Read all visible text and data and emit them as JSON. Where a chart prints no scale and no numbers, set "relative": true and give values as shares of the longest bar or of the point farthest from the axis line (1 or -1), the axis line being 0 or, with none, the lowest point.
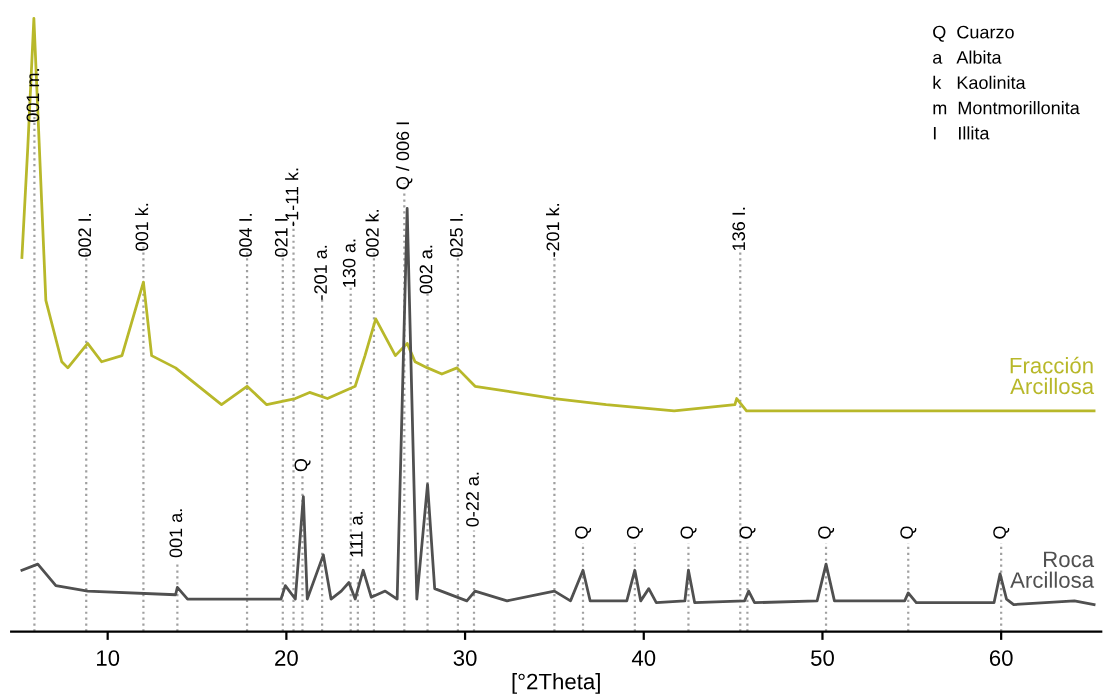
{
  "chart_data": {
    "type": "line",
    "relative": true,
    "xlabel": "[°2Theta]",
    "xlim": [
      4.6,
      65.6
    ],
    "xticks": [
      10,
      20,
      30,
      40,
      50,
      60
    ],
    "grid": false,
    "legend": false,
    "marker": "none",
    "line_style": "solid",
    "series": [
      {
        "name": "Fracción\nArcillosa",
        "color": "#b8b82a",
        "x": [
          5.2,
          5.53,
          5.87,
          6.54,
          7.43,
          7.77,
          8.88,
          9.66,
          10.8,
          12.0,
          12.46,
          13.8,
          16.37,
          17.8,
          18.9,
          20.5,
          21.3,
          22.3,
          23.85,
          24.4,
          25.0,
          26.1,
          26.76,
          27.2,
          27.9,
          28.7,
          29.55,
          30.56,
          35.0,
          37.9,
          41.7,
          45.1,
          45.2,
          45.75,
          52.9,
          65.2
        ],
        "values": [
          0.61,
          0.79,
          1.0,
          0.54,
          0.44,
          0.43,
          0.47,
          0.44,
          0.45,
          0.57,
          0.45,
          0.43,
          0.37,
          0.4,
          0.37,
          0.38,
          0.39,
          0.38,
          0.4,
          0.45,
          0.51,
          0.45,
          0.47,
          0.44,
          0.43,
          0.42,
          0.43,
          0.4,
          0.38,
          0.37,
          0.36,
          0.37,
          0.38,
          0.36,
          0.36,
          0.36
        ]
      },
      {
        "name": "Roca\nArcillosa",
        "color": "#505050",
        "x": [
          5.2,
          6.09,
          7.1,
          8.88,
          13.8,
          13.9,
          14.47,
          19.7,
          19.94,
          20.5,
          20.95,
          21.17,
          22.07,
          22.5,
          23.07,
          23.5,
          23.85,
          24.3,
          24.75,
          25.53,
          26.2,
          26.76,
          27.3,
          27.9,
          28.3,
          30.1,
          30.56,
          32.35,
          35.0,
          35.9,
          36.6,
          37.0,
          39.05,
          39.5,
          39.83,
          40.28,
          40.7,
          42.3,
          42.5,
          42.85,
          45.64,
          45.87,
          46.2,
          49.7,
          50.2,
          50.67,
          54.6,
          54.8,
          55.25,
          59.6,
          59.94,
          60.3,
          60.7,
          64.1,
          65.2
        ],
        "values": [
          0.1,
          0.11,
          0.075,
          0.066,
          0.06,
          0.072,
          0.053,
          0.053,
          0.075,
          0.053,
          0.22,
          0.053,
          0.125,
          0.053,
          0.066,
          0.08,
          0.053,
          0.1,
          0.056,
          0.066,
          0.053,
          0.69,
          0.053,
          0.24,
          0.07,
          0.05,
          0.066,
          0.05,
          0.066,
          0.05,
          0.1,
          0.05,
          0.05,
          0.1,
          0.05,
          0.07,
          0.047,
          0.05,
          0.1,
          0.047,
          0.05,
          0.066,
          0.047,
          0.05,
          0.11,
          0.05,
          0.05,
          0.063,
          0.047,
          0.047,
          0.094,
          0.053,
          0.044,
          0.05,
          0.044
        ]
      }
    ],
    "ref_lines": [
      {
        "axis": "x",
        "value": 5.9,
        "line_style": "dotted",
        "color": "#a0a0a0"
      },
      {
        "axis": "x",
        "value": 8.8,
        "line_style": "dotted",
        "color": "#a0a0a0"
      },
      {
        "axis": "x",
        "value": 12.0,
        "line_style": "dotted",
        "color": "#a0a0a0"
      },
      {
        "axis": "x",
        "value": 13.9,
        "line_style": "dotted",
        "color": "#a0a0a0"
      },
      {
        "axis": "x",
        "value": 17.8,
        "line_style": "dotted",
        "color": "#a0a0a0"
      },
      {
        "axis": "x",
        "value": 19.8,
        "line_style": "dotted",
        "color": "#a0a0a0"
      },
      {
        "axis": "x",
        "value": 20.4,
        "line_style": "dotted",
        "color": "#a0a0a0"
      },
      {
        "axis": "x",
        "value": 20.9,
        "line_style": "dotted",
        "color": "#a0a0a0"
      },
      {
        "axis": "x",
        "value": 22.0,
        "line_style": "dotted",
        "color": "#a0a0a0"
      },
      {
        "axis": "x",
        "value": 23.6,
        "line_style": "dotted",
        "color": "#a0a0a0"
      },
      {
        "axis": "x",
        "value": 24.0,
        "line_style": "dotted",
        "color": "#a0a0a0"
      },
      {
        "axis": "x",
        "value": 24.9,
        "line_style": "dotted",
        "color": "#a0a0a0"
      },
      {
        "axis": "x",
        "value": 26.6,
        "line_style": "dotted",
        "color": "#a0a0a0"
      },
      {
        "axis": "x",
        "value": 27.9,
        "line_style": "dotted",
        "color": "#a0a0a0"
      },
      {
        "axis": "x",
        "value": 29.6,
        "line_style": "dotted",
        "color": "#a0a0a0"
      },
      {
        "axis": "x",
        "value": 30.5,
        "line_style": "dotted",
        "color": "#a0a0a0"
      },
      {
        "axis": "x",
        "value": 35.0,
        "line_style": "dotted",
        "color": "#a0a0a0"
      },
      {
        "axis": "x",
        "value": 36.6,
        "line_style": "dotted",
        "color": "#a0a0a0"
      },
      {
        "axis": "x",
        "value": 39.5,
        "line_style": "dotted",
        "color": "#a0a0a0"
      },
      {
        "axis": "x",
        "value": 42.5,
        "line_style": "dotted",
        "color": "#a0a0a0"
      },
      {
        "axis": "x",
        "value": 45.4,
        "line_style": "dotted",
        "color": "#a0a0a0"
      },
      {
        "axis": "x",
        "value": 45.8,
        "line_style": "dotted",
        "color": "#a0a0a0"
      },
      {
        "axis": "x",
        "value": 50.2,
        "line_style": "dotted",
        "color": "#a0a0a0"
      },
      {
        "axis": "x",
        "value": 54.8,
        "line_style": "dotted",
        "color": "#a0a0a0"
      },
      {
        "axis": "x",
        "value": 60.0,
        "line_style": "dotted",
        "color": "#a0a0a0"
      }
    ],
    "annotations": [
      {
        "text": "001 m.",
        "x": 5.9,
        "y": 0.83
      },
      {
        "text": "002 I.",
        "x": 8.8,
        "y": 0.61
      },
      {
        "text": "001 k.",
        "x": 12.0,
        "y": 0.62
      },
      {
        "text": "004 I.",
        "x": 17.8,
        "y": 0.61
      },
      {
        "text": "021 I.",
        "x": 19.8,
        "y": 0.61
      },
      {
        "text": "-1-11 k.",
        "x": 20.4,
        "y": 0.66
      },
      {
        "text": "-201 a.",
        "x": 22.0,
        "y": 0.54
      },
      {
        "text": "130 a.",
        "x": 23.6,
        "y": 0.56
      },
      {
        "text": "002 k.",
        "x": 24.9,
        "y": 0.61
      },
      {
        "text": "Q / 006 I",
        "x": 26.6,
        "y": 0.72
      },
      {
        "text": "002 a.",
        "x": 27.9,
        "y": 0.55
      },
      {
        "text": "025 I.",
        "x": 29.6,
        "y": 0.61
      },
      {
        "text": "-201 k.",
        "x": 35.0,
        "y": 0.61
      },
      {
        "text": "136 I.",
        "x": 45.4,
        "y": 0.62
      },
      {
        "text": "001 a.",
        "x": 13.9,
        "y": 0.12
      },
      {
        "text": "Q",
        "x": 20.9,
        "y": 0.26
      },
      {
        "text": "111 a.",
        "x": 24.0,
        "y": 0.12
      },
      {
        "text": "0-22 a.",
        "x": 30.5,
        "y": 0.17
      },
      {
        "text": "Q",
        "x": 36.6,
        "y": 0.15
      },
      {
        "text": "Q",
        "x": 39.5,
        "y": 0.15
      },
      {
        "text": "Q",
        "x": 42.5,
        "y": 0.15
      },
      {
        "text": "Q",
        "x": 45.8,
        "y": 0.15
      },
      {
        "text": "Q",
        "x": 50.2,
        "y": 0.15
      },
      {
        "text": "Q",
        "x": 54.8,
        "y": 0.15
      },
      {
        "text": "Q",
        "x": 60.0,
        "y": 0.15
      },
      "Q  Cuarzo",
      "a   Albita",
      "k   Kaolinita",
      "m  Montmorillonita",
      "I    Illita"
    ]
  }
}
